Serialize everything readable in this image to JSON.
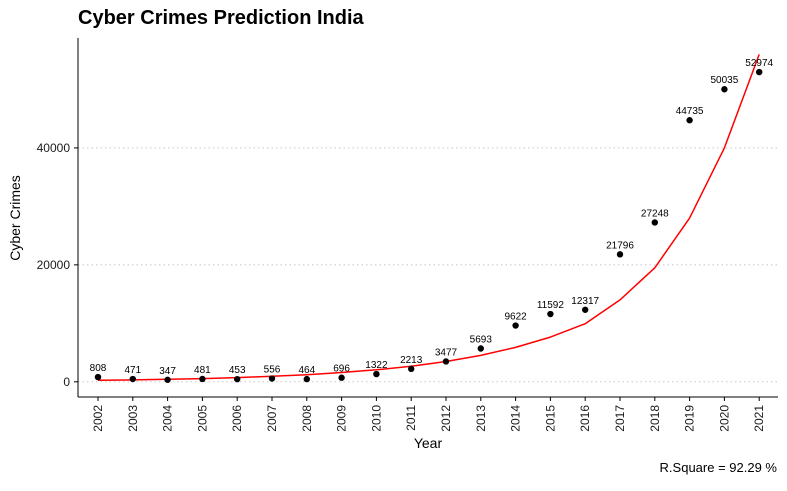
{
  "chart_data": {
    "type": "scatter",
    "title": "Cyber Crimes Prediction India",
    "xlabel": "Year",
    "ylabel": "Cyber Crimes",
    "caption": "R.Square = 92.29 %",
    "x": [
      "2002",
      "2003",
      "2004",
      "2005",
      "2006",
      "2007",
      "2008",
      "2009",
      "2010",
      "2011",
      "2012",
      "2013",
      "2014",
      "2015",
      "2016",
      "2017",
      "2018",
      "2019",
      "2020",
      "2021"
    ],
    "values": [
      808,
      471,
      347,
      481,
      453,
      556,
      464,
      696,
      1322,
      2213,
      3477,
      5693,
      9622,
      11592,
      12317,
      21796,
      27248,
      44735,
      50035,
      52974
    ],
    "data_labels": [
      "808",
      "471",
      "347",
      "481",
      "453",
      "556",
      "464",
      "696",
      "1322",
      "2213",
      "3477",
      "5693",
      "9622",
      "11592",
      "12317",
      "21796",
      "27248",
      "44735",
      "50035",
      "52974"
    ],
    "y_ticks": [
      0,
      20000,
      40000
    ],
    "y_tick_labels": [
      "0",
      "20000",
      "40000"
    ],
    "ylim": [
      -2600,
      58800
    ],
    "grid": "horizontal-dotted",
    "point_color": "#000000",
    "trend": {
      "type": "exponential",
      "color": "#ff0000",
      "x": [
        "2002",
        "2003",
        "2004",
        "2005",
        "2006",
        "2007",
        "2008",
        "2009",
        "2010",
        "2011",
        "2012",
        "2013",
        "2014",
        "2015",
        "2016",
        "2017",
        "2018",
        "2019",
        "2020",
        "2021"
      ],
      "values": [
        252,
        328,
        426,
        554,
        720,
        936,
        1217,
        1582,
        2057,
        2674,
        3476,
        4519,
        5875,
        7638,
        9929,
        14000,
        19500,
        28000,
        40000,
        56000
      ]
    }
  }
}
